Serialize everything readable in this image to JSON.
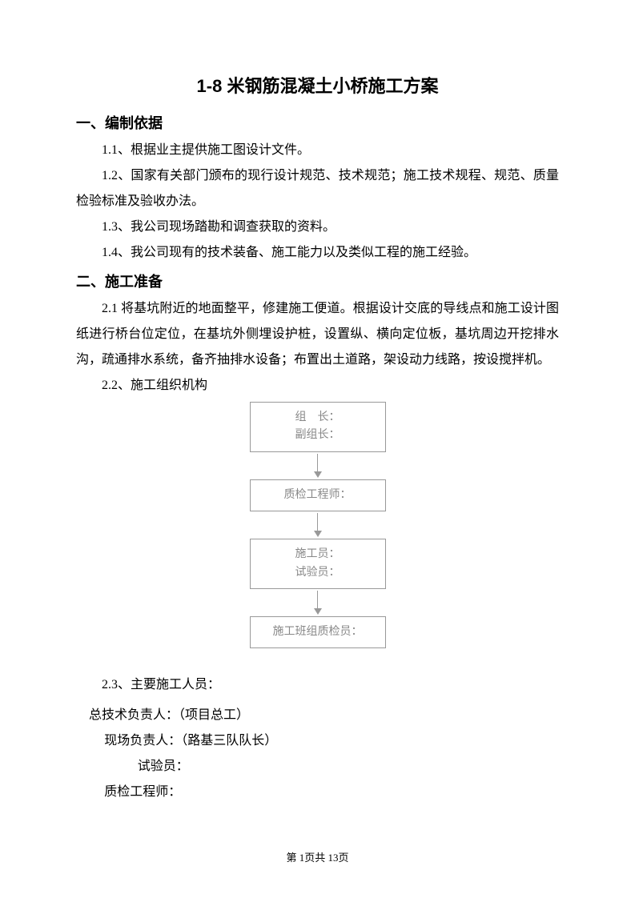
{
  "title": "1-8 米钢筋混凝土小桥施工方案",
  "section1": {
    "heading": "一、编制依据",
    "items": [
      "1.1、根据业主提供施工图设计文件。",
      "1.2、国家有关部门颁布的现行设计规范、技术规范；施工技术规程、规范、质量检验标准及验收办法。",
      "1.3、我公司现场踏勘和调查获取的资料。",
      "1.4、我公司现有的技术装备、施工能力以及类似工程的施工经验。"
    ]
  },
  "section2": {
    "heading": "二、施工准备",
    "para21": "2.1 将基坑附近的地面整平，修建施工便道。根据设计交底的导线点和施工设计图纸进行桥台位定位，在基坑外侧埋设护桩，设置纵、横向定位板，基坑周边开挖排水沟，疏通排水系统，备齐抽排水设备；布置出土道路，架设动力线路，按设搅拌机。",
    "para22_label": "2.2、施工组织机构",
    "flowchart": {
      "nodes": [
        {
          "lines": [
            "组　长：",
            "副组长："
          ]
        },
        {
          "lines": [
            "质检工程师："
          ]
        },
        {
          "lines": [
            "施工员：",
            "试验员："
          ]
        },
        {
          "lines": [
            "施工班组质检员："
          ]
        }
      ],
      "box_border_color": "#999999",
      "box_text_color": "#888888",
      "arrow_color": "#999999"
    },
    "para23_label": "2.3、主要施工人员：",
    "personnel": [
      {
        "indent": "indent-1",
        "text": "总技术负责人：（项目总工）"
      },
      {
        "indent": "indent-2",
        "text": "现场负责人：（路基三队队长）"
      },
      {
        "indent": "indent-3",
        "text": "试验员："
      },
      {
        "indent": "indent-2",
        "text": "质检工程师："
      }
    ]
  },
  "footer": "第 1页共 13页"
}
